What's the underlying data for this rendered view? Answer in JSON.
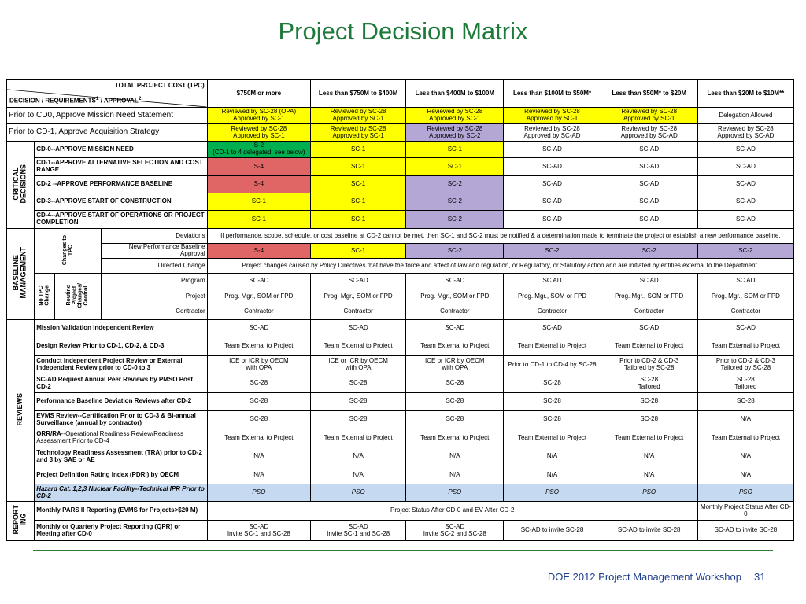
{
  "title": "Project Decision Matrix",
  "footer": {
    "text": "DOE 2012 Project Management Workshop",
    "page": "31"
  },
  "header": {
    "tpc": "TOTAL PROJECT COST (TPC)",
    "decision": "DECISION / REQUIREMENTS",
    "sup1": "1",
    "approval": " / APPROVAL",
    "sup2": "2",
    "cols": [
      "$750M or more",
      "Less than $750M to $400M",
      "Less than $400M to $100M",
      "Less than $100M to $50M*",
      "Less than $50M* to $20M",
      "Less than $20M to $10M**"
    ]
  },
  "top": [
    {
      "label": "Prior to CD0, Approve Mission Need Statement",
      "cells": [
        "Reviewed by SC-28 (OPA)\nApproved by SC-1",
        "Reviewed by SC-28\nApproved by SC-1",
        "Reviewed by SC-28\nApproved by SC-1",
        "Reviewed by SC-28\nApproved by SC-1",
        "Reviewed by SC-28\nApproved by SC-1",
        "Delegation Allowed"
      ]
    },
    {
      "label": "Prior to CD-1, Approve Acquisition Strategy",
      "cells": [
        "Reviewed by SC-28\nApproved by SC-1",
        "Reviewed by SC-28\nApproved by SC-1",
        "Reviewed by SC-28\nApproved by SC-2",
        "Reviewed by SC-28\nApproved by SC-AD",
        "Reviewed by SC-28\nApproved by SC-AD",
        "Reviewed by SC-28\nApproved by SC-AD"
      ]
    }
  ],
  "sections": {
    "critical": "CRITICAL\nDECISIONS",
    "baseline": "BASELINE\nMANAGEMENT",
    "reviews": "REVIEWS",
    "reporting": "REPORT\nING"
  },
  "critical": [
    {
      "label": "CD-0--APPROVE MISSION NEED",
      "cells": [
        "S-2\n(CD-1 to 4 delegated, see below)",
        "SC-1",
        "SC-1",
        "SC-AD",
        "SC-AD",
        "SC-AD"
      ]
    },
    {
      "label": "CD-1--APPROVE ALTERNATIVE SELECTION AND COST RANGE",
      "cells": [
        "S-4",
        "SC-1",
        "SC-1",
        "SC-AD",
        "SC-AD",
        "SC-AD"
      ]
    },
    {
      "label": "CD-2 --APPROVE PERFORMANCE BASELINE",
      "cells": [
        "S-4",
        "SC-1",
        "SC-2",
        "SC-AD",
        "SC-AD",
        "SC-AD"
      ]
    },
    {
      "label": "CD-3--APPROVE START OF CONSTRUCTION",
      "cells": [
        "SC-1",
        "SC-1",
        "SC-2",
        "SC-AD",
        "SC-AD",
        "SC-AD"
      ]
    },
    {
      "label": "CD-4--APPROVE START OF OPERATIONS OR PROJECT COMPLETION",
      "cells": [
        "SC-1",
        "SC-1",
        "SC-2",
        "SC-AD",
        "SC-AD",
        "SC-AD"
      ]
    }
  ],
  "baseline": {
    "changes_tpc": "Changes to\nTPC",
    "no_tpc": "No TPC\nChange",
    "routine": "Routine\nProject\nChanges/\nControl",
    "deviations": {
      "label": "Deviations",
      "text": "If performance, scope, schedule, or cost baseline at CD-2 cannot be met, then SC-1 and SC-2 must be notified & a determination made to terminate the project or establish a new performance baseline."
    },
    "npba": {
      "label": "New Performance Baseline Approval",
      "cells": [
        "S-4",
        "SC-1",
        "SC-2",
        "SC-2",
        "SC-2",
        "SC-2"
      ]
    },
    "directed": {
      "label": "Directed Change",
      "text": "Project changes caused by Policy Directives that have the force and affect of law and regulation, or Regulatory, or Statutory action and are initiated by entities external to the Department."
    },
    "program": {
      "label": "Program",
      "cells": [
        "SC-AD",
        "SC-AD",
        "SC-AD",
        "SC AD",
        "SC AD",
        "SC AD"
      ]
    },
    "project": {
      "label": "Project",
      "cells": [
        "Prog. Mgr., SOM or FPD",
        "Prog. Mgr., SOM or FPD",
        "Prog. Mgr., SOM or FPD",
        "Prog. Mgr., SOM or FPD",
        "Prog. Mgr., SOM or FPD",
        "Prog. Mgr., SOM or FPD"
      ]
    },
    "contractor": {
      "label": "Contractor",
      "cells": [
        "Contractor",
        "Contractor",
        "Contractor",
        "Contractor",
        "Contractor",
        "Contractor"
      ]
    }
  },
  "reviews": [
    {
      "label": "Mission Validation Independent Review",
      "cells": [
        "SC-AD",
        "SC-AD",
        "SC-AD",
        "SC-AD",
        "SC-AD",
        "SC-AD"
      ]
    },
    {
      "label": "Design Review Prior to CD-1, CD-2, & CD-3",
      "cells": [
        "Team External to Project",
        "Team External to Project",
        "Team External to Project",
        "Team External to Project",
        "Team External to Project",
        "Team External to Project"
      ]
    },
    {
      "label": "Conduct Independent Project Review or External Independent Review prior to CD-0 to 3",
      "cells": [
        "ICE or ICR by OECM\nwith OPA",
        "ICE or ICR by OECM\nwith OPA",
        "ICE or ICR by OECM\nwith OPA",
        "Prior to CD-1 to CD-4 by SC-28",
        "Prior to CD-2 & CD-3\nTailored by SC-28",
        "Prior to CD-2 & CD-3\nTailored by SC-28"
      ]
    },
    {
      "label": "SC-AD Request Annual Peer Reviews by PMSO Post CD-2",
      "cells": [
        "SC-28",
        "SC-28",
        "SC-28",
        "SC-28",
        "SC-28\nTailored",
        "SC-28\nTailored"
      ]
    },
    {
      "label": "Performance Baseline Deviation Reviews after CD-2",
      "cells": [
        "SC-28",
        "SC-28",
        "SC-28",
        "SC-28",
        "SC-28",
        "SC-28"
      ]
    },
    {
      "label": "EVMS Review--Certification Prior to CD-3 & Bi-annual Surveillance (annual by contractor)",
      "cells": [
        "SC-28",
        "SC-28",
        "SC-28",
        "SC-28",
        "SC-28",
        "N/A"
      ]
    },
    {
      "label_bold": "ORR/RA",
      "label_rest": "--Operational Readiness Review/Readiness Assessment Prior to CD-4",
      "cells": [
        "Team External to Project",
        "Team External to Project",
        "Team External to Project",
        "Team External to Project",
        "Team External to Project",
        "Team External to Project"
      ]
    },
    {
      "label": "Technology Readiness Assessment (TRA) prior to CD-2 and 3 by SAE or AE",
      "cells": [
        "N/A",
        "N/A",
        "N/A",
        "N/A",
        "N/A",
        "N/A"
      ]
    },
    {
      "label": "Project Definition Rating Index (PDRI) by OECM",
      "cells": [
        "N/A",
        "N/A",
        "N/A",
        "N/A",
        "N/A",
        "N/A"
      ]
    },
    {
      "label": "Hazard Cat. 1,2,3 Nuclear Facility--Technical IPR Prior to CD-2",
      "cells": [
        "PSO",
        "PSO",
        "PSO",
        "PSO",
        "PSO",
        "PSO"
      ]
    }
  ],
  "reporting": [
    {
      "label": "Monthly PARS II Reporting (EVMS for Projects>$20 M)",
      "span": "Project Status After CD-0 and EV After CD-2",
      "last": "Monthly Project Status After CD-0"
    },
    {
      "label": "Monthly or Quarterly Project Reporting (QPR) or Meeting after CD-0",
      "cells": [
        "SC-AD\nInvite SC-1 and SC-28",
        "SC-AD\nInvite SC-1 and SC-28",
        "SC-AD\nInvite SC-2 and SC-28",
        "SC-AD to invite SC-28",
        "SC-AD to invite SC-28",
        "SC-AD to invite SC-28"
      ]
    }
  ]
}
